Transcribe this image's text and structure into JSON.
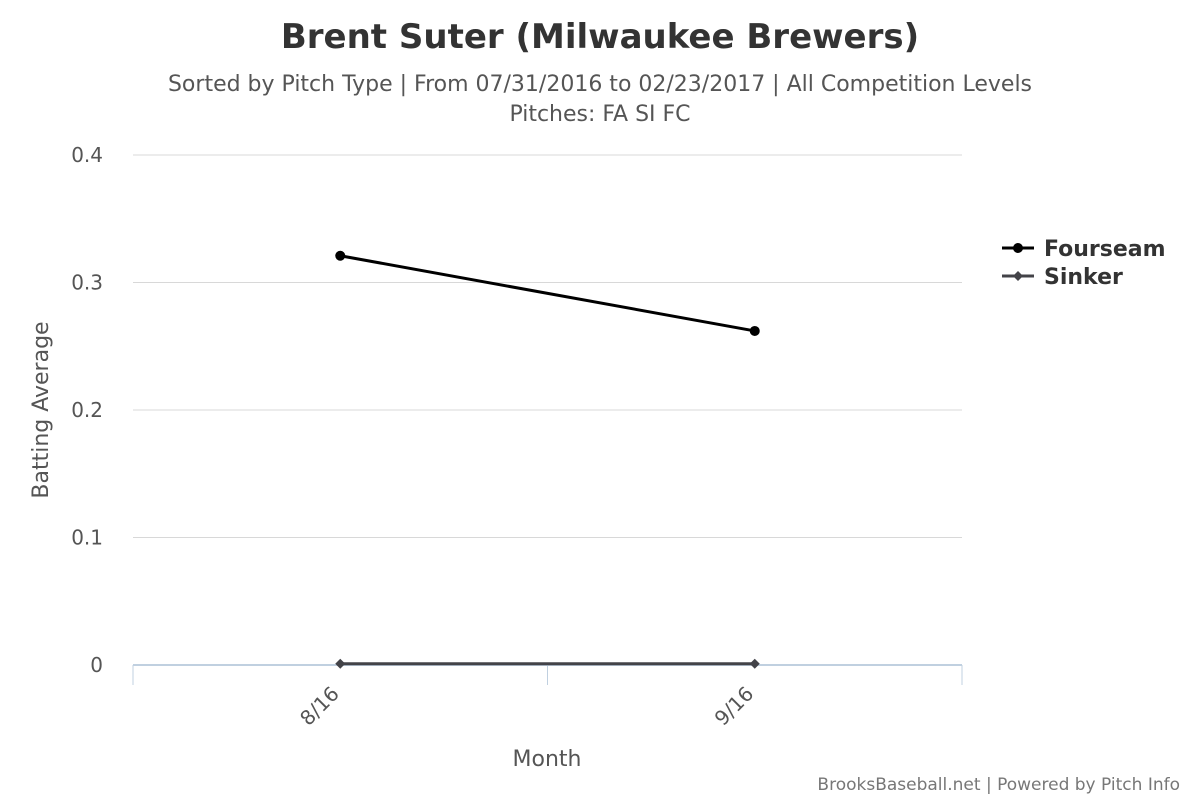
{
  "chart_data": {
    "type": "line",
    "title": "Brent Suter (Milwaukee Brewers)",
    "subtitle_line1": "Sorted by Pitch Type | From 07/31/2016 to 02/23/2017 | All Competition Levels",
    "subtitle_line2": "Pitches: FA SI FC",
    "xlabel": "Month",
    "ylabel": "Batting Average",
    "categories": [
      "8/16",
      "9/16"
    ],
    "ylim": [
      0,
      0.4
    ],
    "yticks": [
      0,
      0.1,
      0.2,
      0.3,
      0.4
    ],
    "ytick_labels": [
      "0",
      "0.1",
      "0.2",
      "0.3",
      "0.4"
    ],
    "grid": true,
    "legend_position": "right",
    "series": [
      {
        "name": "Fourseam",
        "values": [
          0.321,
          0.262
        ],
        "color": "#000000",
        "marker": "circle"
      },
      {
        "name": "Sinker",
        "values": [
          0.001,
          0.001
        ],
        "color": "#434348",
        "marker": "diamond"
      }
    ]
  },
  "credits": "BrooksBaseball.net | Powered by Pitch Info"
}
